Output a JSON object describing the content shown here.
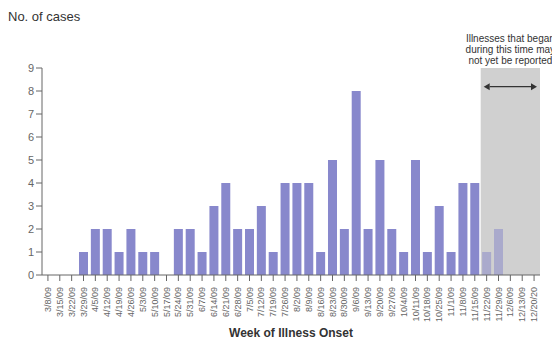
{
  "chart_data": {
    "type": "bar",
    "title": "No. of cases",
    "x_label": "Week of Illness Onset",
    "categories": [
      "3/8/09",
      "3/15/09",
      "3/22/09",
      "3/29/09",
      "4/5/09",
      "4/12/09",
      "4/19/09",
      "4/26/09",
      "5/3/09",
      "5/10/09",
      "5/17/09",
      "5/24/09",
      "5/31/09",
      "6/7/09",
      "6/14/09",
      "6/21/09",
      "6/28/09",
      "7/5/09",
      "7/12/09",
      "7/19/09",
      "7/26/09",
      "8/2/09",
      "8/9/09",
      "8/16/09",
      "8/23/09",
      "8/30/09",
      "9/6/09",
      "9/13/09",
      "9/20/09",
      "9/27/09",
      "10/4/09",
      "10/11/09",
      "10/18/09",
      "10/25/09",
      "11/1/09",
      "11/8/09",
      "11/15/09",
      "11/22/09",
      "11/29/09",
      "12/6/09",
      "12/13/09",
      "12/20/20"
    ],
    "values": [
      0,
      0,
      0,
      1,
      2,
      2,
      1,
      2,
      1,
      1,
      0,
      2,
      2,
      1,
      3,
      4,
      2,
      2,
      3,
      1,
      4,
      4,
      4,
      1,
      5,
      2,
      8,
      2,
      5,
      2,
      1,
      5,
      1,
      3,
      1,
      4,
      4,
      1,
      2,
      0,
      0,
      0
    ],
    "colors": [
      "#8888CC",
      "#8888CC",
      "#8888CC",
      "#8888CC",
      "#8888CC",
      "#8888CC",
      "#8888CC",
      "#8888CC",
      "#8888CC",
      "#8888CC",
      "#8888CC",
      "#8888CC",
      "#8888CC",
      "#8888CC",
      "#8888CC",
      "#8888CC",
      "#8888CC",
      "#8888CC",
      "#8888CC",
      "#8888CC",
      "#8888CC",
      "#8888CC",
      "#8888CC",
      "#8888CC",
      "#8888CC",
      "#8888CC",
      "#8888CC",
      "#8888CC",
      "#8888CC",
      "#8888CC",
      "#8888CC",
      "#8888CC",
      "#8888CC",
      "#8888CC",
      "#8888CC",
      "#8888CC",
      "#8888CC",
      "#AAAACC",
      "#AAAACC",
      "#AAAACC",
      "#AAAACC",
      "#AAAACC"
    ],
    "ylim": [
      0,
      9
    ],
    "yticks": [
      0,
      1,
      2,
      3,
      4,
      5,
      6,
      7,
      8,
      9
    ],
    "grid": false,
    "annotations": [
      {
        "text": "Illnesses that began\nduring this time may\nnot yet be reported",
        "x_start": "11/22/09",
        "x_end": "12/20/20",
        "color": "#D0D0D0"
      }
    ]
  }
}
